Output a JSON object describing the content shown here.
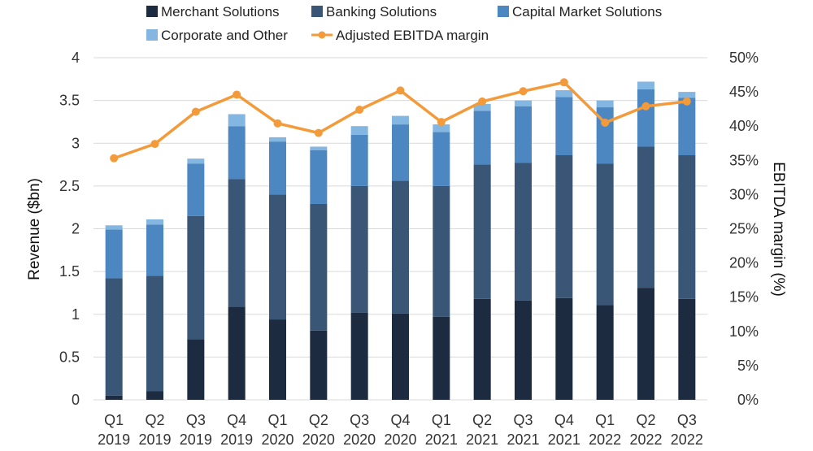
{
  "chart_data": {
    "type": "bar",
    "stacked": true,
    "title": "",
    "categories": [
      [
        "Q1",
        "2019"
      ],
      [
        "Q2",
        "2019"
      ],
      [
        "Q3",
        "2019"
      ],
      [
        "Q4",
        "2019"
      ],
      [
        "Q1",
        "2020"
      ],
      [
        "Q2",
        "2020"
      ],
      [
        "Q3",
        "2020"
      ],
      [
        "Q4",
        "2020"
      ],
      [
        "Q1",
        "2021"
      ],
      [
        "Q2",
        "2021"
      ],
      [
        "Q3",
        "2021"
      ],
      [
        "Q4",
        "2021"
      ],
      [
        "Q1",
        "2022"
      ],
      [
        "Q2",
        "2022"
      ],
      [
        "Q3",
        "2022"
      ]
    ],
    "series": [
      {
        "name": "Merchant Solutions",
        "color": "#1c2b3f",
        "values": [
          0.05,
          0.1,
          0.71,
          1.09,
          0.94,
          0.81,
          1.02,
          1.01,
          0.97,
          1.18,
          1.16,
          1.19,
          1.11,
          1.31,
          1.18
        ]
      },
      {
        "name": "Banking Solutions",
        "color": "#3a5677",
        "values": [
          1.37,
          1.35,
          1.44,
          1.49,
          1.46,
          1.48,
          1.48,
          1.55,
          1.53,
          1.57,
          1.61,
          1.67,
          1.65,
          1.65,
          1.68
        ]
      },
      {
        "name": "Capital Market Solutions",
        "color": "#4c87c2",
        "values": [
          0.57,
          0.6,
          0.61,
          0.62,
          0.62,
          0.63,
          0.6,
          0.66,
          0.63,
          0.63,
          0.66,
          0.68,
          0.66,
          0.67,
          0.67
        ]
      },
      {
        "name": "Corporate and Other",
        "color": "#84b6e2",
        "values": [
          0.05,
          0.06,
          0.06,
          0.14,
          0.05,
          0.04,
          0.1,
          0.1,
          0.09,
          0.08,
          0.07,
          0.08,
          0.08,
          0.09,
          0.07
        ]
      }
    ],
    "line_series": {
      "name": "Adjusted EBITDA margin",
      "color": "#f39a3a",
      "axis": "right",
      "values": [
        35.3,
        37.4,
        42.1,
        44.6,
        40.4,
        39.0,
        42.4,
        45.2,
        40.6,
        43.6,
        45.1,
        46.4,
        40.5,
        42.9,
        43.6
      ]
    },
    "ylabel": "Revenue ($bn)",
    "y2label": "EBITDA margin (%)",
    "ylim": [
      0,
      4
    ],
    "y2lim": [
      0,
      50
    ],
    "yticks": [
      "0",
      "0.5",
      "1",
      "1.5",
      "2",
      "2.5",
      "3",
      "3.5",
      "4"
    ],
    "y2ticks": [
      "0%",
      "5%",
      "10%",
      "15%",
      "20%",
      "25%",
      "30%",
      "35%",
      "40%",
      "45%",
      "50%"
    ],
    "grid": true,
    "legend_position": "top"
  }
}
